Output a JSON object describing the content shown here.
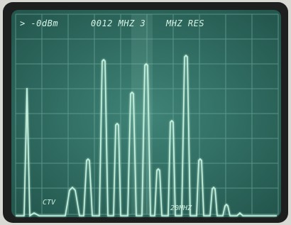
{
  "screen": {
    "readout": {
      "level": "> -0dBm",
      "span": "0012 MHZ 3",
      "resolution": "MHZ RES"
    },
    "markers": {
      "left": "CTV",
      "right": "20MHZ"
    }
  }
}
